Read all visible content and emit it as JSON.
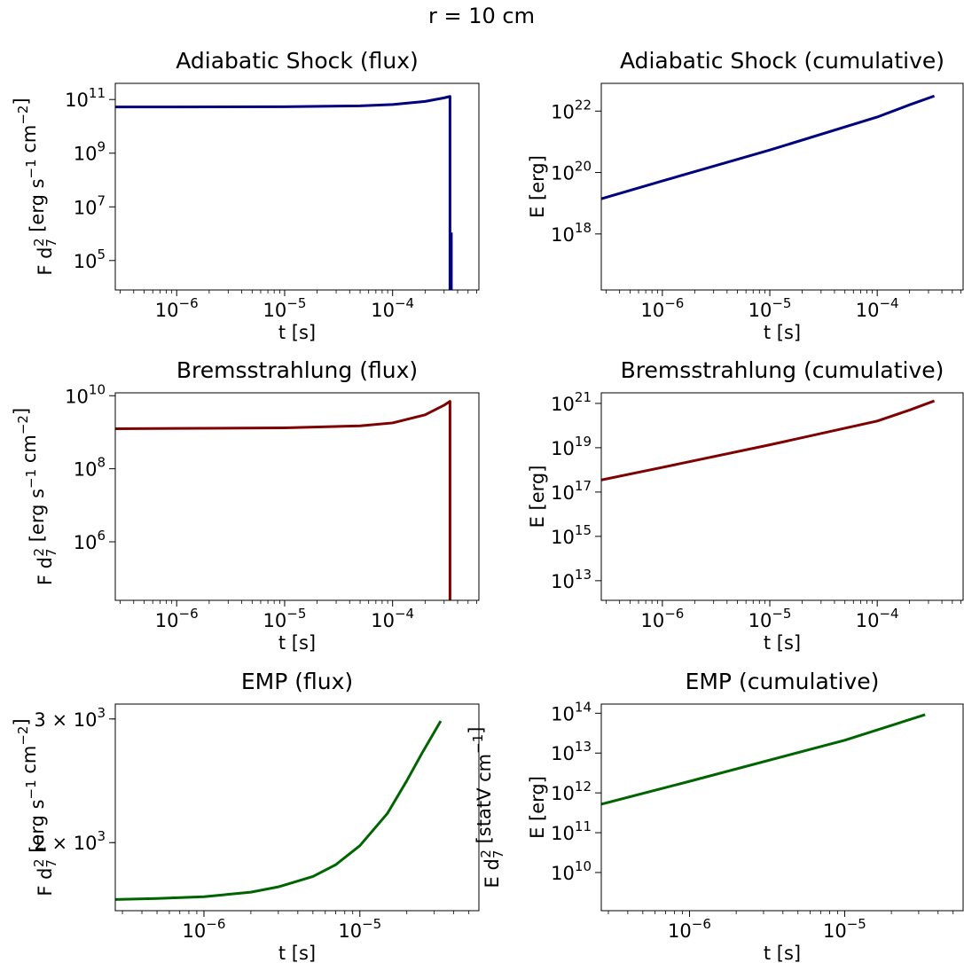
{
  "figure": {
    "suptitle": "r = 10 cm"
  },
  "chart_data": [
    {
      "id": "adiabatic-flux",
      "type": "line",
      "title": "Adiabatic Shock (flux)",
      "xlabel": "t  [s]",
      "ylabel": "F d₇²  [erg s⁻¹ cm⁻²]",
      "xscale": "log",
      "yscale": "log",
      "xlim": [
        2.7e-07,
        0.00063
      ],
      "ylim": [
        8000,
        400000000000.0
      ],
      "xticks": [
        {
          "value": 1e-06,
          "base": "10",
          "exp": "−6"
        },
        {
          "value": 1e-05,
          "base": "10",
          "exp": "−5"
        },
        {
          "value": 0.0001,
          "base": "10",
          "exp": "−4"
        }
      ],
      "yticks": [
        {
          "value": 100000.0,
          "base": "10",
          "exp": "5"
        },
        {
          "value": 10000000.0,
          "base": "10",
          "exp": "7"
        },
        {
          "value": 1000000000.0,
          "base": "10",
          "exp": "9"
        },
        {
          "value": 100000000000.0,
          "base": "10",
          "exp": "11"
        }
      ],
      "color": "#00007f",
      "series": [
        {
          "x": [
            2.7e-07,
            1e-06,
            1e-05,
            5e-05,
            0.0001,
            0.0002,
            0.0003,
            0.00034,
            0.00034,
            0.00035,
            0.00035
          ],
          "y": [
            53000000000.0,
            53000000000.0,
            54000000000.0,
            58000000000.0,
            65000000000.0,
            85000000000.0,
            115000000000.0,
            130000000000.0,
            8000,
            8000,
            1100000.0
          ]
        }
      ]
    },
    {
      "id": "adiabatic-cumulative",
      "type": "line",
      "title": "Adiabatic Shock (cumulative)",
      "xlabel": "t  [s]",
      "ylabel": "E  [erg]",
      "xscale": "log",
      "yscale": "log",
      "xlim": [
        2.7e-07,
        0.00063
      ],
      "ylim": [
        1.5e+16,
        8e+22
      ],
      "xticks": [
        {
          "value": 1e-06,
          "base": "10",
          "exp": "−6"
        },
        {
          "value": 1e-05,
          "base": "10",
          "exp": "−5"
        },
        {
          "value": 0.0001,
          "base": "10",
          "exp": "−4"
        }
      ],
      "yticks": [
        {
          "value": 1e+18,
          "base": "10",
          "exp": "18"
        },
        {
          "value": 1e+20,
          "base": "10",
          "exp": "20"
        },
        {
          "value": 1e+22,
          "base": "10",
          "exp": "22"
        }
      ],
      "color": "#00007f",
      "series": [
        {
          "x": [
            2.7e-07,
            1e-06,
            1e-05,
            0.0001,
            0.0002,
            0.00034
          ],
          "y": [
            1.4e+19,
            5.3e+19,
            5.4e+20,
            6.4e+21,
            1.6e+22,
            3.1e+22
          ]
        }
      ]
    },
    {
      "id": "bremsstrahlung-flux",
      "type": "line",
      "title": "Bremsstrahlung (flux)",
      "xlabel": "t  [s]",
      "ylabel": "F d₇²  [erg s⁻¹ cm⁻²]",
      "xscale": "log",
      "yscale": "log",
      "xlim": [
        2.7e-07,
        0.00063
      ],
      "ylim": [
        25000,
        12000000000.0
      ],
      "xticks": [
        {
          "value": 1e-06,
          "base": "10",
          "exp": "−6"
        },
        {
          "value": 1e-05,
          "base": "10",
          "exp": "−5"
        },
        {
          "value": 0.0001,
          "base": "10",
          "exp": "−4"
        }
      ],
      "yticks": [
        {
          "value": 1000000.0,
          "base": "10",
          "exp": "6"
        },
        {
          "value": 100000000.0,
          "base": "10",
          "exp": "8"
        },
        {
          "value": 10000000000.0,
          "base": "10",
          "exp": "10"
        }
      ],
      "color": "#7f0000",
      "series": [
        {
          "x": [
            2.7e-07,
            1e-06,
            1e-05,
            5e-05,
            0.0001,
            0.0002,
            0.0003,
            0.00034,
            0.00034
          ],
          "y": [
            1250000000.0,
            1270000000.0,
            1320000000.0,
            1500000000.0,
            1800000000.0,
            3000000000.0,
            5500000000.0,
            7000000000.0,
            25000
          ]
        }
      ]
    },
    {
      "id": "bremsstrahlung-cumulative",
      "type": "line",
      "title": "Bremsstrahlung (cumulative)",
      "xlabel": "t  [s]",
      "ylabel": "E  [erg]",
      "xscale": "log",
      "yscale": "log",
      "xlim": [
        2.7e-07,
        0.00063
      ],
      "ylim": [
        1300000000000.0,
        3e+21
      ],
      "xticks": [
        {
          "value": 1e-06,
          "base": "10",
          "exp": "−6"
        },
        {
          "value": 1e-05,
          "base": "10",
          "exp": "−5"
        },
        {
          "value": 0.0001,
          "base": "10",
          "exp": "−4"
        }
      ],
      "yticks": [
        {
          "value": 10000000000000.0,
          "base": "10",
          "exp": "13"
        },
        {
          "value": 1000000000000000.0,
          "base": "10",
          "exp": "15"
        },
        {
          "value": 1e+17,
          "base": "10",
          "exp": "17"
        },
        {
          "value": 1e+19,
          "base": "10",
          "exp": "19"
        },
        {
          "value": 1e+21,
          "base": "10",
          "exp": "21"
        }
      ],
      "color": "#7f0000",
      "series": [
        {
          "x": [
            2.7e-07,
            1e-06,
            1e-05,
            0.0001,
            0.0002,
            0.00034
          ],
          "y": [
            3.5e+17,
            1.3e+18,
            1.35e+19,
            1.6e+20,
            5e+20,
            1.3e+21
          ]
        }
      ]
    },
    {
      "id": "emp-flux",
      "type": "line",
      "title": "EMP (flux)",
      "xlabel": "t  [s]",
      "ylabel": "F d₇²  [erg s⁻¹ cm⁻²]",
      "ylabel2": "E d₇²  [statV cm⁻¹]",
      "xscale": "log",
      "yscale": "log",
      "xlim": [
        2.7e-07,
        5.8e-05
      ],
      "ylim": [
        1600,
        3150
      ],
      "xticks": [
        {
          "value": 1e-06,
          "base": "10",
          "exp": "−6"
        },
        {
          "value": 1e-05,
          "base": "10",
          "exp": "−5"
        }
      ],
      "yticks": [
        {
          "value": 2000,
          "base": "2 × 10",
          "exp": "3"
        },
        {
          "value": 3000,
          "base": "3 × 10",
          "exp": "3"
        }
      ],
      "color": "#006400",
      "series": [
        {
          "x": [
            2.7e-07,
            5e-07,
            1e-06,
            2e-06,
            3e-06,
            5e-06,
            7e-06,
            1e-05,
            1.5e-05,
            2e-05,
            2.5e-05,
            3.3e-05
          ],
          "y": [
            1660,
            1665,
            1675,
            1700,
            1730,
            1790,
            1860,
            1980,
            2200,
            2450,
            2680,
            2980
          ]
        }
      ]
    },
    {
      "id": "emp-cumulative",
      "type": "line",
      "title": "EMP (cumulative)",
      "xlabel": "t  [s]",
      "ylabel": "E  [erg]",
      "xscale": "log",
      "yscale": "log",
      "xlim": [
        2.7e-07,
        5.8e-05
      ],
      "ylim": [
        1100000000.0,
        170000000000000.0
      ],
      "xticks": [
        {
          "value": 1e-06,
          "base": "10",
          "exp": "−6"
        },
        {
          "value": 1e-05,
          "base": "10",
          "exp": "−5"
        }
      ],
      "yticks": [
        {
          "value": 10000000000.0,
          "base": "10",
          "exp": "10"
        },
        {
          "value": 100000000000.0,
          "base": "10",
          "exp": "11"
        },
        {
          "value": 1000000000000.0,
          "base": "10",
          "exp": "12"
        },
        {
          "value": 10000000000000.0,
          "base": "10",
          "exp": "13"
        },
        {
          "value": 100000000000000.0,
          "base": "10",
          "exp": "14"
        }
      ],
      "color": "#006400",
      "series": [
        {
          "x": [
            2.7e-07,
            1e-06,
            1e-05,
            3.3e-05
          ],
          "y": [
            520000000000.0,
            1950000000000.0,
            21000000000000.0,
            92000000000000.0
          ]
        }
      ]
    }
  ]
}
